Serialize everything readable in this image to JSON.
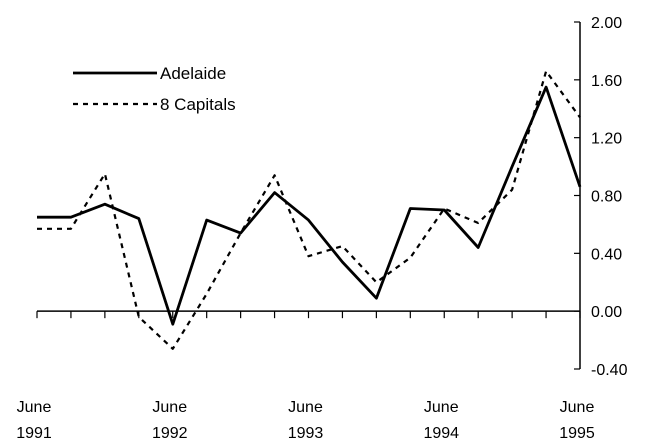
{
  "chart_data": {
    "type": "line",
    "title": "",
    "xlabel": "",
    "ylabel": "",
    "x": [
      "Jun 1991",
      "Sep 1991",
      "Dec 1991",
      "Mar 1992",
      "Jun 1992",
      "Sep 1992",
      "Dec 1992",
      "Mar 1993",
      "Jun 1993",
      "Sep 1993",
      "Dec 1993",
      "Mar 1994",
      "Jun 1994",
      "Sep 1994",
      "Dec 1994",
      "Mar 1995",
      "Jun 1995"
    ],
    "x_tick_labels": [
      {
        "line1": "June",
        "line2": "1991"
      },
      {
        "line1": "June",
        "line2": "1992"
      },
      {
        "line1": "June",
        "line2": "1993"
      },
      {
        "line1": "June",
        "line2": "1994"
      },
      {
        "line1": "June",
        "line2": "1995"
      }
    ],
    "series": [
      {
        "name": "Adelaide",
        "style": "solid",
        "color": "#000000",
        "values": [
          0.65,
          0.65,
          0.74,
          0.64,
          -0.09,
          0.63,
          0.54,
          0.82,
          0.63,
          0.34,
          0.09,
          0.71,
          0.7,
          0.44,
          1.0,
          1.55,
          0.86
        ]
      },
      {
        "name": "8 Capitals",
        "style": "dashed",
        "color": "#000000",
        "values": [
          0.57,
          0.57,
          0.95,
          -0.04,
          -0.26,
          0.12,
          0.54,
          0.94,
          0.38,
          0.45,
          0.2,
          0.37,
          0.71,
          0.61,
          0.84,
          1.66,
          1.34
        ]
      }
    ],
    "y_ticks": [
      "2.00",
      "1.60",
      "1.20",
      "0.80",
      "0.40",
      "0.00",
      "-0.40"
    ],
    "ylim": [
      -0.4,
      2.0
    ],
    "y_axis_side": "right",
    "grid": false,
    "legend_position": "top-left"
  }
}
